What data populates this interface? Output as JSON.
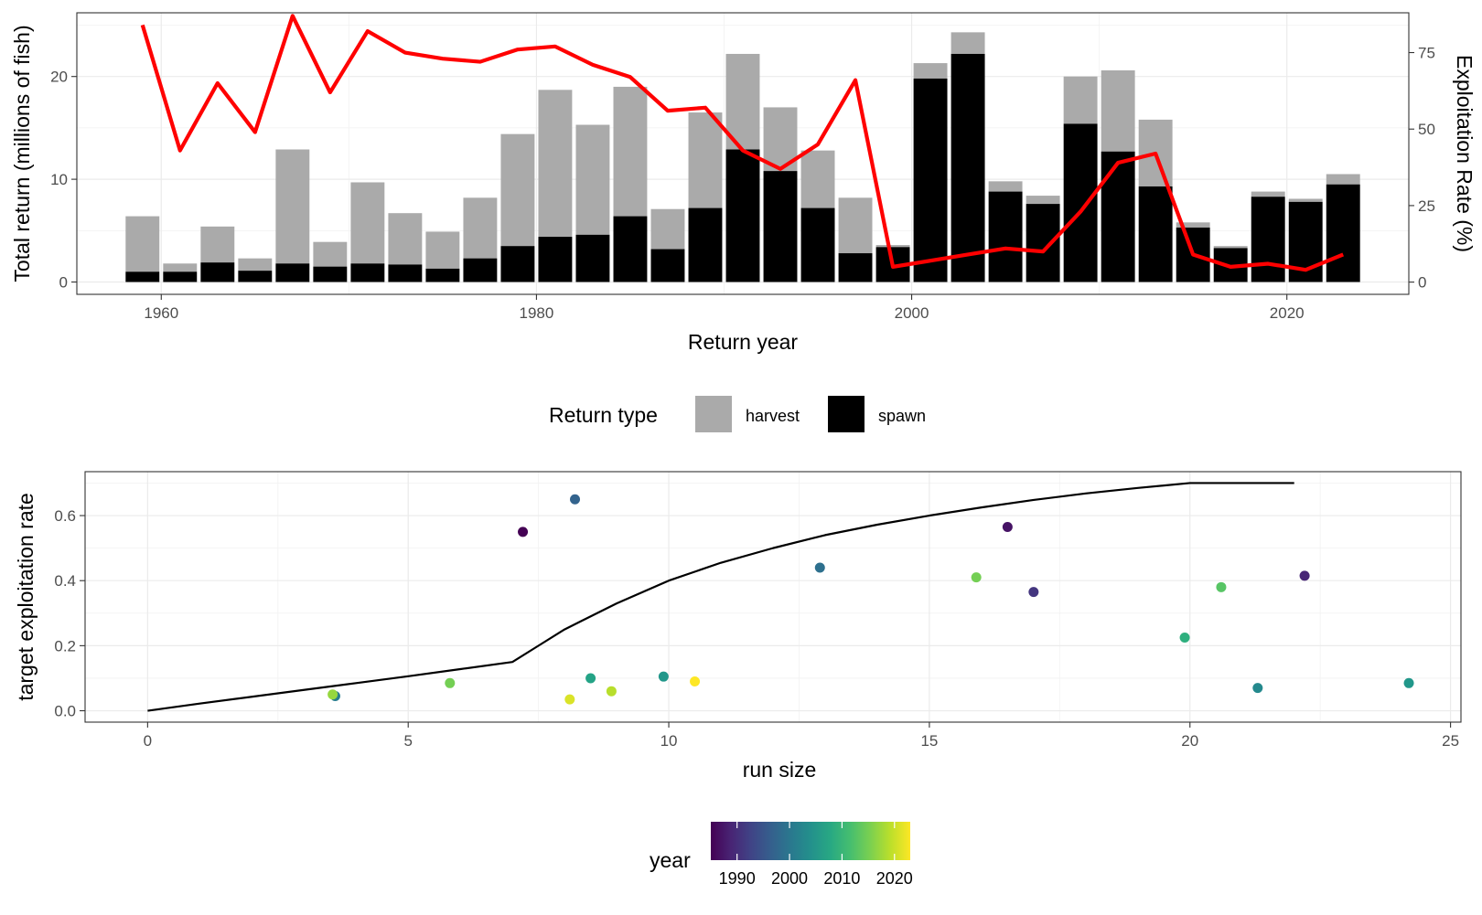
{
  "chart_data": [
    {
      "type": "bar",
      "stacked": true,
      "xlabel": "Return year",
      "ylabel": "Total return (millions of fish)",
      "y2label": "Exploitation Rate (%)",
      "xlim": [
        1955.5,
        2026.5
      ],
      "ylim": [
        -1.2,
        26.2
      ],
      "y2lim": [
        -4,
        88
      ],
      "xticks": [
        1960,
        1980,
        2000,
        2020
      ],
      "yticks": [
        0,
        10,
        20
      ],
      "y2ticks": [
        0,
        25,
        50,
        75
      ],
      "grid": true,
      "legend": {
        "title": "Return type",
        "position": "bottom",
        "entries": [
          {
            "label": "harvest",
            "color": "#aaaaaa"
          },
          {
            "label": "spawn",
            "color": "#000000"
          }
        ]
      },
      "categories": [
        1959,
        1961,
        1963,
        1965,
        1967,
        1969,
        1971,
        1973,
        1975,
        1977,
        1979,
        1981,
        1983,
        1985,
        1987,
        1989,
        1991,
        1993,
        1995,
        1997,
        1999,
        2001,
        2003,
        2005,
        2007,
        2009,
        2011,
        2013,
        2015,
        2017,
        2019,
        2021,
        2023
      ],
      "series": [
        {
          "name": "spawn",
          "color": "#000000",
          "values": [
            1.0,
            1.0,
            1.9,
            1.1,
            1.8,
            1.5,
            1.8,
            1.7,
            1.3,
            2.3,
            3.5,
            4.4,
            4.6,
            6.4,
            3.2,
            7.2,
            12.9,
            10.8,
            7.2,
            2.8,
            3.4,
            19.8,
            22.2,
            8.8,
            7.6,
            15.4,
            12.7,
            9.3,
            5.3,
            3.3,
            8.3,
            7.8,
            9.5
          ]
        },
        {
          "name": "harvest",
          "color": "#aaaaaa",
          "values": [
            5.4,
            0.8,
            3.5,
            1.2,
            11.1,
            2.4,
            7.9,
            5.0,
            3.6,
            5.9,
            10.9,
            14.3,
            10.7,
            12.6,
            3.9,
            9.3,
            9.3,
            6.2,
            5.6,
            5.4,
            0.2,
            1.5,
            2.1,
            1.0,
            0.8,
            4.6,
            7.9,
            6.5,
            0.5,
            0.2,
            0.5,
            0.3,
            1.0
          ]
        }
      ],
      "line": {
        "axis": "y2",
        "color": "#ff0000",
        "x": [
          1959,
          1961,
          1963,
          1965,
          1967,
          1969,
          1971,
          1973,
          1975,
          1977,
          1979,
          1981,
          1983,
          1985,
          1987,
          1989,
          1991,
          1993,
          1995,
          1997,
          1999,
          2001,
          2003,
          2005,
          2007,
          2009,
          2011,
          2013,
          2015,
          2017,
          2019,
          2021,
          2023
        ],
        "values": [
          84,
          43,
          65,
          49,
          87,
          62,
          82,
          75,
          73,
          72,
          76,
          77,
          71,
          67,
          56,
          57,
          43,
          37,
          45,
          66,
          5,
          7,
          9,
          11,
          10,
          23,
          39,
          42,
          9,
          5,
          6,
          4,
          9
        ]
      }
    },
    {
      "type": "scatter",
      "xlabel": "run size",
      "ylabel": "target exploitation rate",
      "xlim": [
        -1.2,
        25.2
      ],
      "ylim": [
        -0.035,
        0.735
      ],
      "xticks": [
        0,
        5,
        10,
        15,
        20,
        25
      ],
      "yticks": [
        0.0,
        0.2,
        0.4,
        0.6
      ],
      "ytick_labels": [
        "0.0",
        "0.2",
        "0.4",
        "0.6"
      ],
      "grid": true,
      "legend": {
        "title": "year",
        "type": "colorbar",
        "position": "bottom",
        "palette": "viridis",
        "range": [
          1985,
          2023
        ],
        "ticks": [
          1990,
          2000,
          2010,
          2020
        ]
      },
      "points": [
        {
          "x": 7.2,
          "y": 0.55,
          "year": 1985
        },
        {
          "x": 8.2,
          "y": 0.65,
          "year": 1997
        },
        {
          "x": 12.9,
          "y": 0.44,
          "year": 1999
        },
        {
          "x": 16.5,
          "y": 0.565,
          "year": 1987
        },
        {
          "x": 17.0,
          "y": 0.365,
          "year": 1991
        },
        {
          "x": 22.2,
          "y": 0.415,
          "year": 1989
        },
        {
          "x": 3.6,
          "y": 0.045,
          "year": 2001
        },
        {
          "x": 9.9,
          "y": 0.105,
          "year": 2005
        },
        {
          "x": 8.5,
          "y": 0.1,
          "year": 2007
        },
        {
          "x": 21.3,
          "y": 0.07,
          "year": 2003
        },
        {
          "x": 24.2,
          "y": 0.085,
          "year": 2005
        },
        {
          "x": 19.9,
          "y": 0.225,
          "year": 2009
        },
        {
          "x": 20.6,
          "y": 0.38,
          "year": 2013
        },
        {
          "x": 15.9,
          "y": 0.41,
          "year": 2015
        },
        {
          "x": 5.8,
          "y": 0.085,
          "year": 2015
        },
        {
          "x": 3.55,
          "y": 0.05,
          "year": 2017
        },
        {
          "x": 8.9,
          "y": 0.06,
          "year": 2019
        },
        {
          "x": 8.1,
          "y": 0.035,
          "year": 2021
        },
        {
          "x": 10.5,
          "y": 0.09,
          "year": 2023
        }
      ],
      "line": {
        "color": "#000000",
        "x": [
          0,
          1,
          2,
          3,
          4,
          5,
          6,
          7,
          7.5,
          8,
          9,
          10,
          11,
          12,
          13,
          14,
          15,
          16,
          17,
          18,
          19,
          20,
          21,
          22
        ],
        "y": [
          0,
          0.022,
          0.043,
          0.064,
          0.085,
          0.106,
          0.128,
          0.15,
          0.2,
          0.25,
          0.33,
          0.4,
          0.455,
          0.5,
          0.54,
          0.572,
          0.6,
          0.625,
          0.648,
          0.668,
          0.685,
          0.7,
          0.7,
          0.7
        ]
      }
    }
  ]
}
